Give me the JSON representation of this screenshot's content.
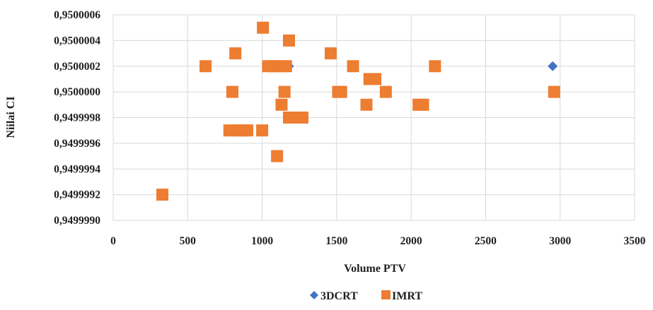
{
  "chart_data": {
    "type": "scatter",
    "title": "",
    "xlabel": "Volume PTV",
    "ylabel": "Niilai CI",
    "xlim": [
      0,
      3500
    ],
    "ylim": [
      0.949999,
      0.9500006
    ],
    "x_ticks": [
      "0",
      "500",
      "1000",
      "1500",
      "2000",
      "2500",
      "3000",
      "3500"
    ],
    "y_ticks": [
      "0,9499990",
      "0,9499992",
      "0,9499994",
      "0,9499996",
      "0,9499998",
      "0,9500000",
      "0,9500002",
      "0,9500004",
      "0,9500006"
    ],
    "grid": true,
    "legend_position": "bottom",
    "series": [
      {
        "name": "3DCRT",
        "color": "#4472c4",
        "marker": "diamond",
        "points": [
          {
            "x": 1180,
            "y": 0.9500002
          },
          {
            "x": 2950,
            "y": 0.9500002
          }
        ]
      },
      {
        "name": "IMRT",
        "color": "#ed7d31",
        "marker": "square",
        "points": [
          {
            "x": 330,
            "y": 0.9499992
          },
          {
            "x": 620,
            "y": 0.9500002
          },
          {
            "x": 780,
            "y": 0.9499997
          },
          {
            "x": 800,
            "y": 0.95
          },
          {
            "x": 820,
            "y": 0.9500003
          },
          {
            "x": 840,
            "y": 0.9499997
          },
          {
            "x": 870,
            "y": 0.9499997
          },
          {
            "x": 900,
            "y": 0.9499997
          },
          {
            "x": 1000,
            "y": 0.9499997
          },
          {
            "x": 1005,
            "y": 0.9500005
          },
          {
            "x": 1040,
            "y": 0.9500002
          },
          {
            "x": 1080,
            "y": 0.9500002
          },
          {
            "x": 1100,
            "y": 0.9499995
          },
          {
            "x": 1120,
            "y": 0.9500002
          },
          {
            "x": 1130,
            "y": 0.9499999
          },
          {
            "x": 1150,
            "y": 0.95
          },
          {
            "x": 1160,
            "y": 0.9500002
          },
          {
            "x": 1180,
            "y": 0.9499998
          },
          {
            "x": 1180,
            "y": 0.9500004
          },
          {
            "x": 1220,
            "y": 0.9499998
          },
          {
            "x": 1270,
            "y": 0.9499998
          },
          {
            "x": 1460,
            "y": 0.9500003
          },
          {
            "x": 1510,
            "y": 0.95
          },
          {
            "x": 1530,
            "y": 0.95
          },
          {
            "x": 1610,
            "y": 0.9500002
          },
          {
            "x": 1700,
            "y": 0.9499999
          },
          {
            "x": 1720,
            "y": 0.9500001
          },
          {
            "x": 1760,
            "y": 0.9500001
          },
          {
            "x": 1830,
            "y": 0.95
          },
          {
            "x": 2050,
            "y": 0.9499999
          },
          {
            "x": 2080,
            "y": 0.9499999
          },
          {
            "x": 2160,
            "y": 0.9500002
          },
          {
            "x": 2960,
            "y": 0.95
          }
        ]
      }
    ]
  }
}
